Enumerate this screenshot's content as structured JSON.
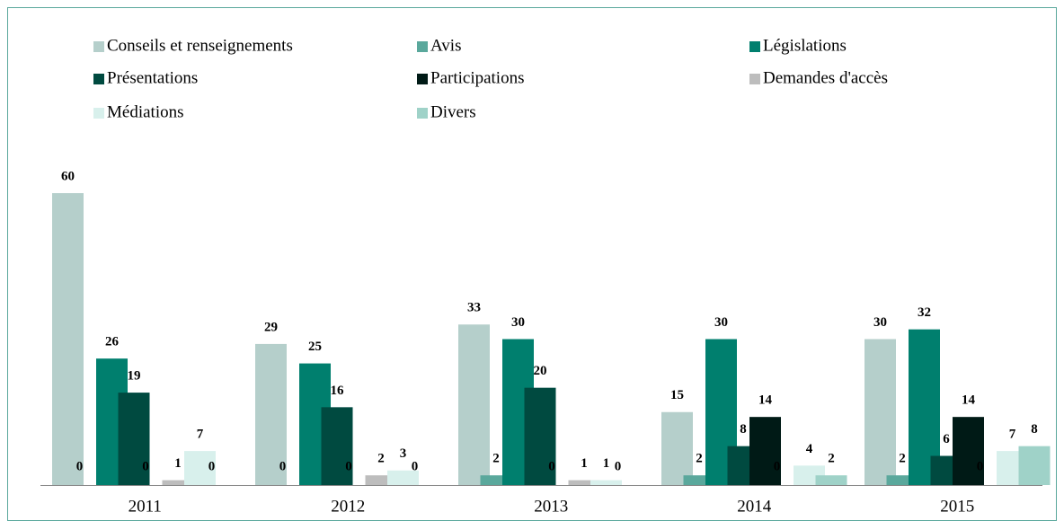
{
  "chart_data": {
    "type": "bar",
    "categories": [
      "2011",
      "2012",
      "2013",
      "2014",
      "2015"
    ],
    "series": [
      {
        "name": "Conseils et renseignements",
        "color": "#b5cfcb",
        "values": [
          60,
          29,
          33,
          15,
          30
        ]
      },
      {
        "name": "Avis",
        "color": "#5aa89c",
        "values": [
          0,
          0,
          2,
          2,
          2
        ]
      },
      {
        "name": "Législations",
        "color": "#007f6e",
        "values": [
          26,
          25,
          30,
          30,
          32
        ]
      },
      {
        "name": "Présentations",
        "color": "#004a40",
        "values": [
          19,
          16,
          20,
          8,
          6
        ]
      },
      {
        "name": "Participations",
        "color": "#001a16",
        "values": [
          0,
          0,
          0,
          14,
          14
        ]
      },
      {
        "name": "Demandes d'accès",
        "color": "#bdbdbd",
        "values": [
          1,
          2,
          1,
          0,
          0
        ]
      },
      {
        "name": "Médiations",
        "color": "#d8f0ec",
        "values": [
          7,
          3,
          1,
          4,
          7
        ]
      },
      {
        "name": "Divers",
        "color": "#9fd2c8",
        "values": [
          0,
          0,
          0,
          2,
          8
        ]
      }
    ],
    "ylim": [
      0,
      60
    ]
  }
}
